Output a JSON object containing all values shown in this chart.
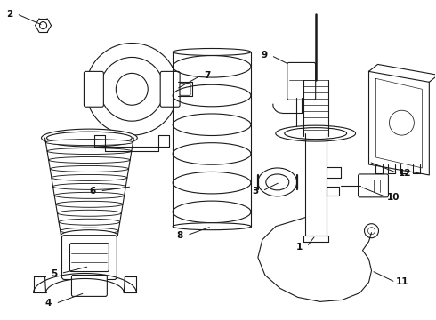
{
  "bg_color": "#ffffff",
  "line_color": "#1a1a1a",
  "label_color": "#111111",
  "lw": 0.8,
  "label_fontsize": 7.5
}
